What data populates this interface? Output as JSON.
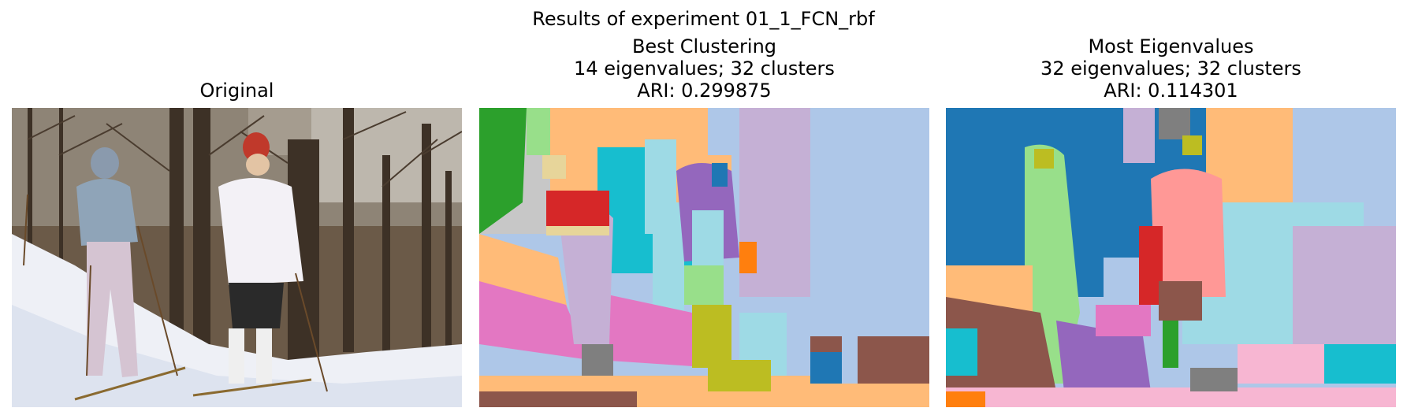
{
  "figure": {
    "title": "Results of experiment 01_1_FCN_rbf"
  },
  "panels": [
    {
      "id": "original",
      "title_lines": [
        "Original"
      ],
      "image": "photo-two-skiers-in-snowy-forest"
    },
    {
      "id": "best",
      "title_lines": [
        "Best Clustering",
        "14 eigenvalues; 32 clusters",
        "ARI: 0.299875"
      ],
      "image": "segmentation-map"
    },
    {
      "id": "most",
      "title_lines": [
        "Most Eigenvalues",
        "32 eigenvalues; 32 clusters",
        "ARI: 0.114301"
      ],
      "image": "segmentation-map"
    }
  ],
  "colors": {
    "background": "#ffffff",
    "cluster_light_blue": "#aec7e8",
    "cluster_blue": "#1f77b4",
    "cluster_orange": "#ffbb78",
    "cluster_green": "#2ca02c",
    "cluster_light_green": "#98df8a",
    "cluster_red": "#d62728",
    "cluster_pink": "#ff9896",
    "cluster_purple": "#9467bd",
    "cluster_lavender": "#c5b0d5",
    "cluster_brown": "#8c564b",
    "cluster_magenta": "#e377c2",
    "cluster_gray": "#7f7f7f",
    "cluster_olive": "#bcbd22",
    "cluster_cyan": "#17becf",
    "cluster_light_cyan": "#9edae5"
  }
}
